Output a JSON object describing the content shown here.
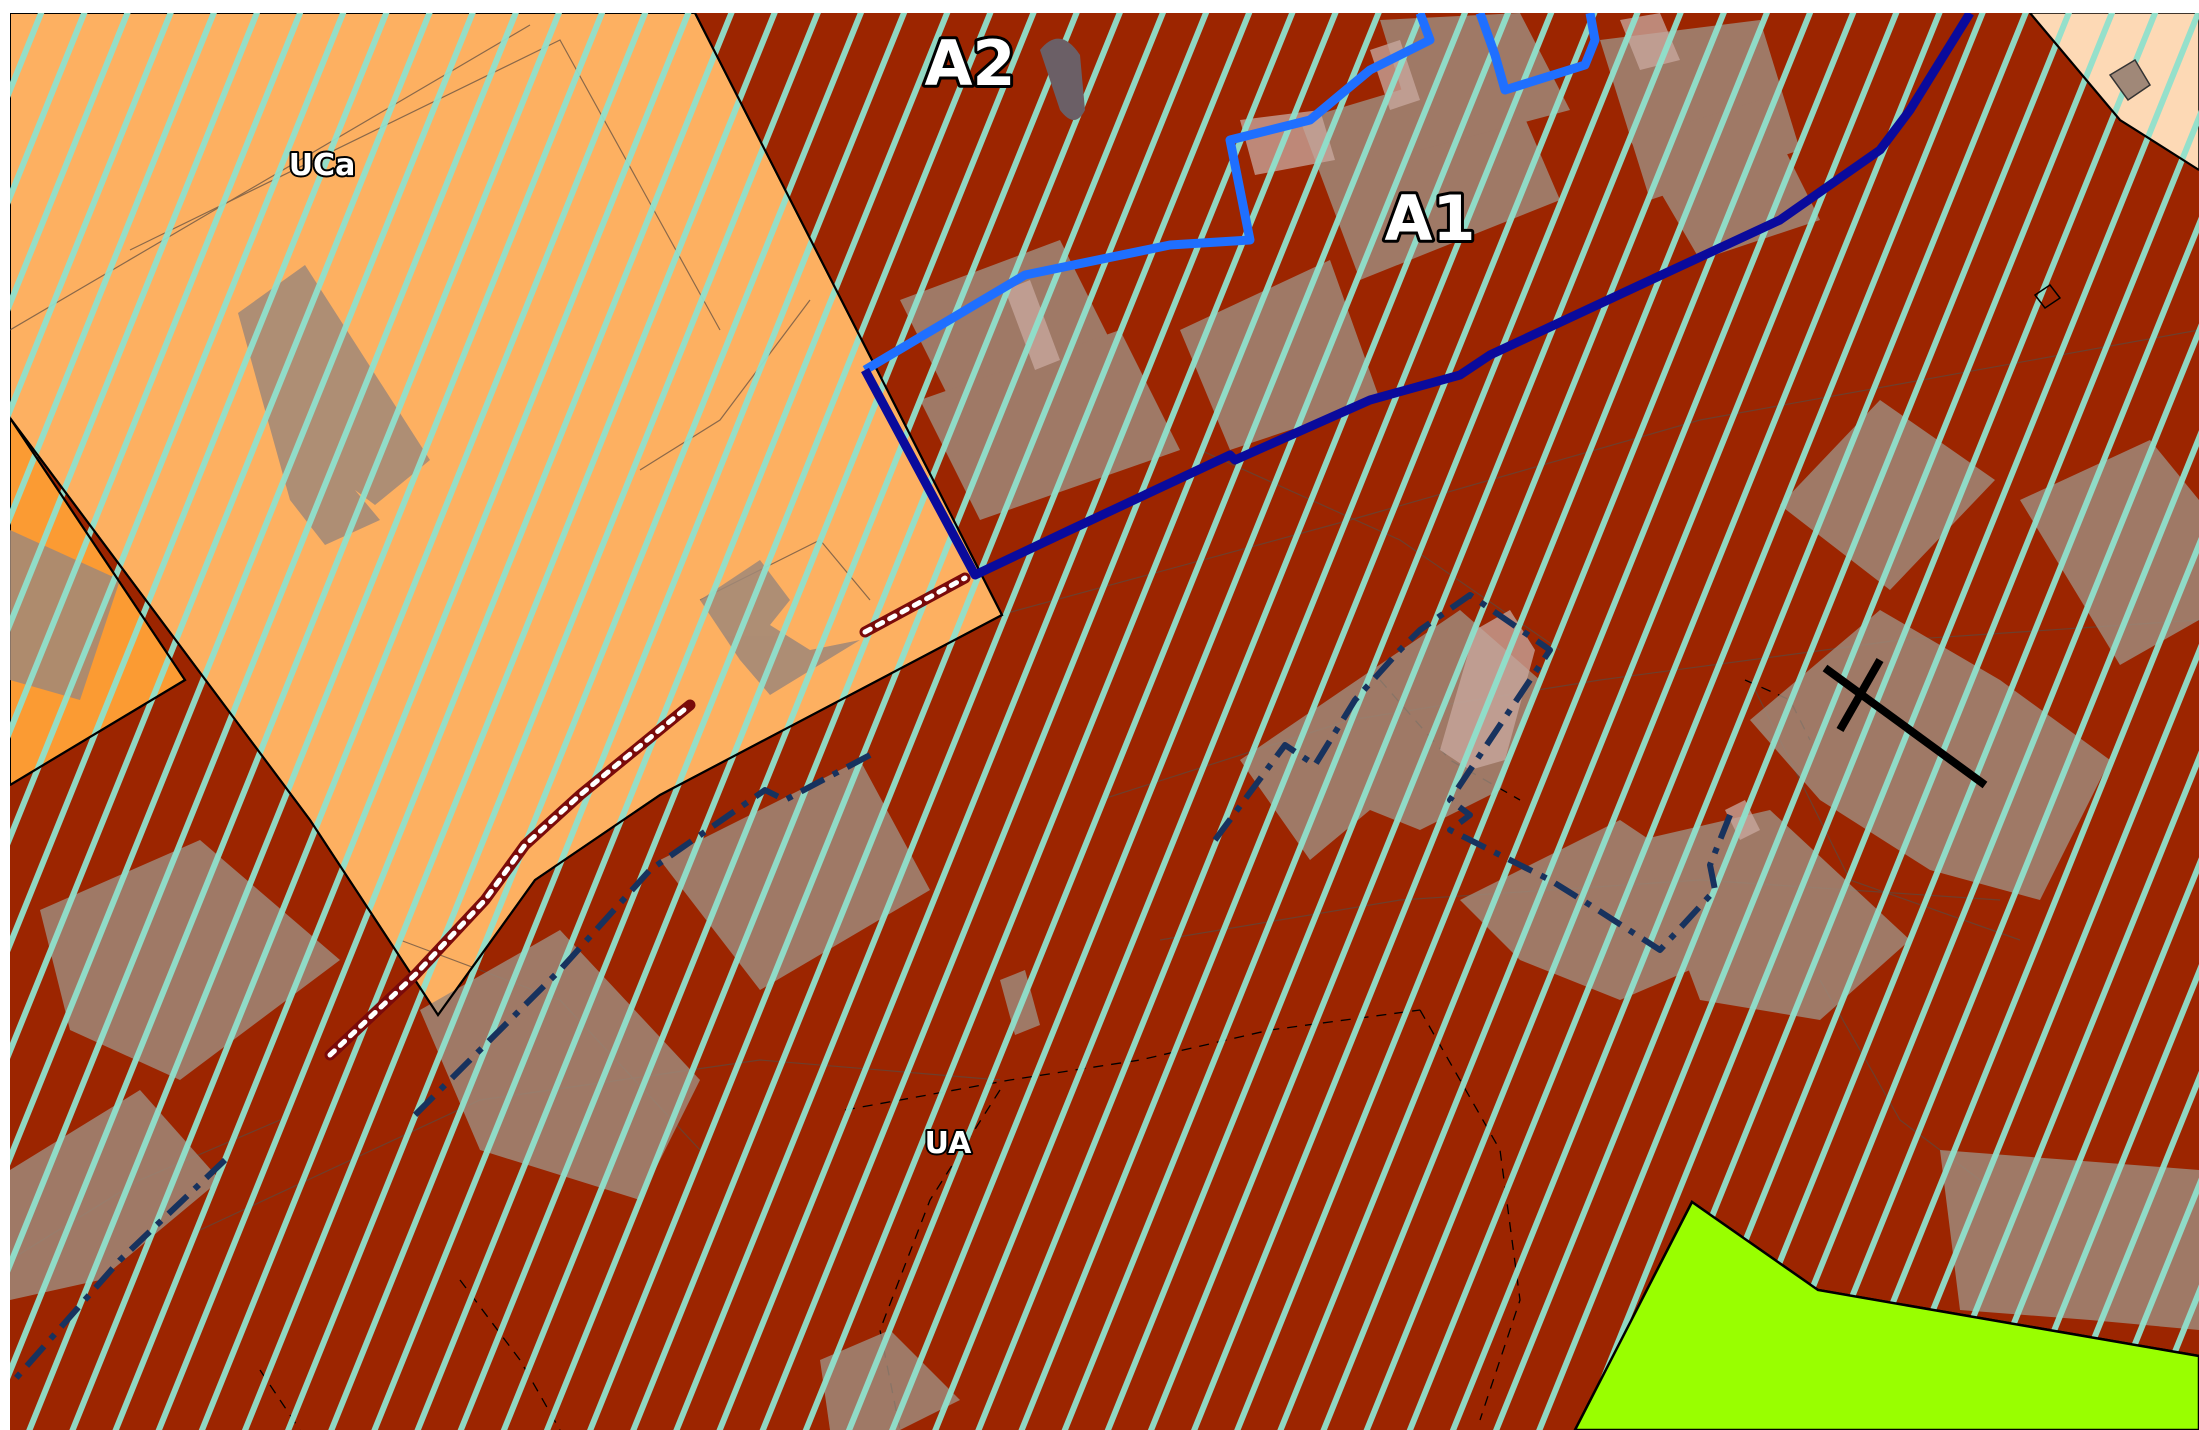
{
  "map": {
    "zones": [
      {
        "code": "UCa",
        "color": "#fdb061"
      },
      {
        "code": "UA",
        "color": "#9c2500"
      }
    ],
    "area_labels": [
      "A1",
      "A2"
    ],
    "colors": {
      "background": "#ffffff",
      "zone_ua": "#9c2500",
      "zone_uca": "#fdb061",
      "zone_orange": "#fb9b33",
      "zone_light": "#fdd9b5",
      "green_area": "#99ff00",
      "hatch": "#8fe0cc",
      "buildings": "#a08878",
      "boundary_blue": "#0a0a9c",
      "boundary_blue_light": "#1f6fff",
      "dashed_navy": "#17325e",
      "path_red": "#7a0a0a"
    },
    "symbols": [
      "cross-icon"
    ]
  }
}
